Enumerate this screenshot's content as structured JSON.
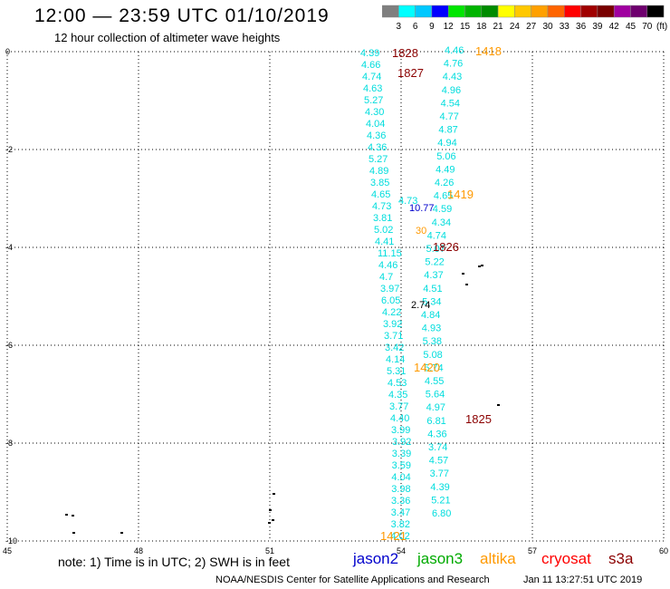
{
  "header": {
    "title": "12:00 — 23:59 UTC 01/10/2019",
    "subtitle": "12 hour collection of altimeter wave heights"
  },
  "colorbar": {
    "labels": [
      "3",
      "6",
      "9",
      "12",
      "15",
      "18",
      "21",
      "24",
      "27",
      "30",
      "33",
      "36",
      "39",
      "42",
      "45",
      "70",
      "(ft)"
    ],
    "colors": [
      "#7f7f7f",
      "#00ffff",
      "#00c8ff",
      "#0000ff",
      "#00e600",
      "#00b400",
      "#008c00",
      "#ffff00",
      "#ffc800",
      "#ffa000",
      "#ff6400",
      "#ff0000",
      "#a00000",
      "#780000",
      "#a000a0",
      "#6e006e",
      "#000000"
    ]
  },
  "axes": {
    "lat_labels": [
      "0",
      "-2",
      "-4",
      "-6",
      "-8",
      "-10"
    ],
    "lon_labels": [
      "45",
      "48",
      "51",
      "54",
      "57",
      "60"
    ],
    "lon_range": [
      45,
      60
    ],
    "lat_range": [
      -10,
      0
    ],
    "grid": "dotted"
  },
  "tracks": {
    "west_color": "#00dddd",
    "east_color": "#00dddd",
    "west": [
      "4.39",
      "4.66",
      "4.74",
      "4.63",
      "5.27",
      "4.30",
      "4.04",
      "4.36",
      "4.36",
      "5.27",
      "4.89",
      "3.85",
      "4.65",
      "4.73",
      "3.81",
      "5.02",
      "4.41",
      "11.15",
      "4.46",
      "4.7",
      "3.97",
      "6.05",
      "4.22",
      "3.92",
      "3.71",
      "3.42",
      "4.14",
      "5.31",
      "4.53",
      "4.35",
      "3.77",
      "4.40",
      "3.99",
      "3.92",
      "3.39",
      "3.59",
      "4.04",
      "3.98",
      "3.36",
      "3.47",
      "3.82",
      "4.02"
    ],
    "east": [
      "4.46",
      "4.76",
      "4.43",
      "4.96",
      "4.54",
      "4.77",
      "4.87",
      "4.94",
      "5.06",
      "4.49",
      "4.26",
      "4.65",
      "4.59",
      "4.34",
      "4.74",
      "5.07",
      "5.22",
      "4.37",
      "4.51",
      "5.34",
      "4.84",
      "4.93",
      "5.38",
      "5.08",
      "5.74",
      "4.55",
      "5.64",
      "4.97",
      "6.81",
      "4.36",
      "3.74",
      "4.57",
      "3.77",
      "4.39",
      "5.21",
      "6.80"
    ],
    "extra_values": [
      {
        "text": "10.77",
        "color": "#0000cc"
      },
      {
        "text": "30",
        "color": "#ff9900"
      },
      {
        "text": "2.74",
        "color": "#000000"
      },
      {
        "text": "4.73",
        "color": "#00dddd"
      }
    ]
  },
  "times": [
    {
      "text": "1828",
      "color": "#8b0000"
    },
    {
      "text": "1827",
      "color": "#8b0000"
    },
    {
      "text": "1418",
      "color": "#ff9900"
    },
    {
      "text": "1419",
      "color": "#ff9900"
    },
    {
      "text": "1826",
      "color": "#8b0000"
    },
    {
      "text": "1420",
      "color": "#ff9900"
    },
    {
      "text": "1825",
      "color": "#8b0000"
    },
    {
      "text": "1421",
      "color": "#ff9900"
    }
  ],
  "legend": {
    "note": "note:  1) Time is in UTC;  2) SWH is in feet",
    "satellites": [
      {
        "name": "jason2",
        "color": "#0000cc"
      },
      {
        "name": "jason3",
        "color": "#00aa00"
      },
      {
        "name": "altika",
        "color": "#ff9900"
      },
      {
        "name": "cryosat",
        "color": "#ff0000"
      },
      {
        "name": "s3a",
        "color": "#8b0000"
      }
    ]
  },
  "footer": {
    "credit": "NOAA/NESDIS Center for Satellite Applications and Research",
    "timestamp": "Jan 11 13:27:51 UTC 2019"
  }
}
